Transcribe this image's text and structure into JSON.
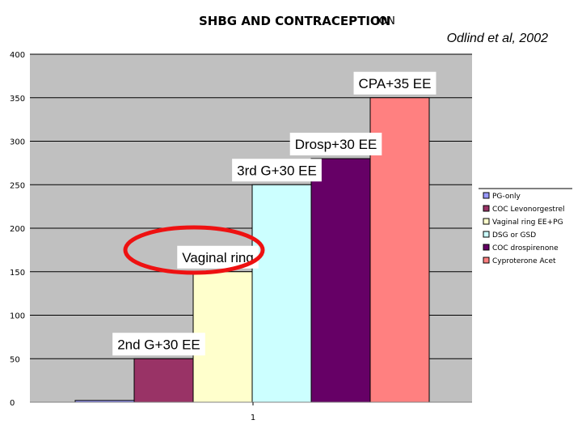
{
  "chart_data": {
    "type": "bar",
    "title": "SHBG AND CONTRACEPTION",
    "title_overlap": "ION",
    "citation": "Odlind et al, 2002",
    "categories": [
      "1"
    ],
    "ylim": [
      0,
      400
    ],
    "yticks": [
      0,
      50,
      100,
      150,
      200,
      250,
      300,
      350,
      400
    ],
    "grid": true,
    "legend_position": "right",
    "series": [
      {
        "name": "PG-only",
        "value": 2,
        "color": "#9999ff"
      },
      {
        "name": "COC Levonorgestrel",
        "value": 50,
        "color": "#993366"
      },
      {
        "name": "Vaginal ring EE+PG",
        "value": 150,
        "color": "#ffffcc"
      },
      {
        "name": "DSG or GSD",
        "value": 250,
        "color": "#ccffff"
      },
      {
        "name": "COC drospirenone",
        "value": 280,
        "color": "#660066"
      },
      {
        "name": "Cyproterone Acet",
        "value": 350,
        "color": "#ff8080"
      }
    ],
    "annotations": [
      {
        "text": "2nd G+30 EE",
        "series": 1
      },
      {
        "text": "Vaginal ring",
        "series": 2,
        "circled": true
      },
      {
        "text": "3rd G+30 EE",
        "series": 3
      },
      {
        "text": "Drosp+30 EE",
        "series": 4
      },
      {
        "text": "CPA+35 EE",
        "series": 5
      }
    ]
  }
}
